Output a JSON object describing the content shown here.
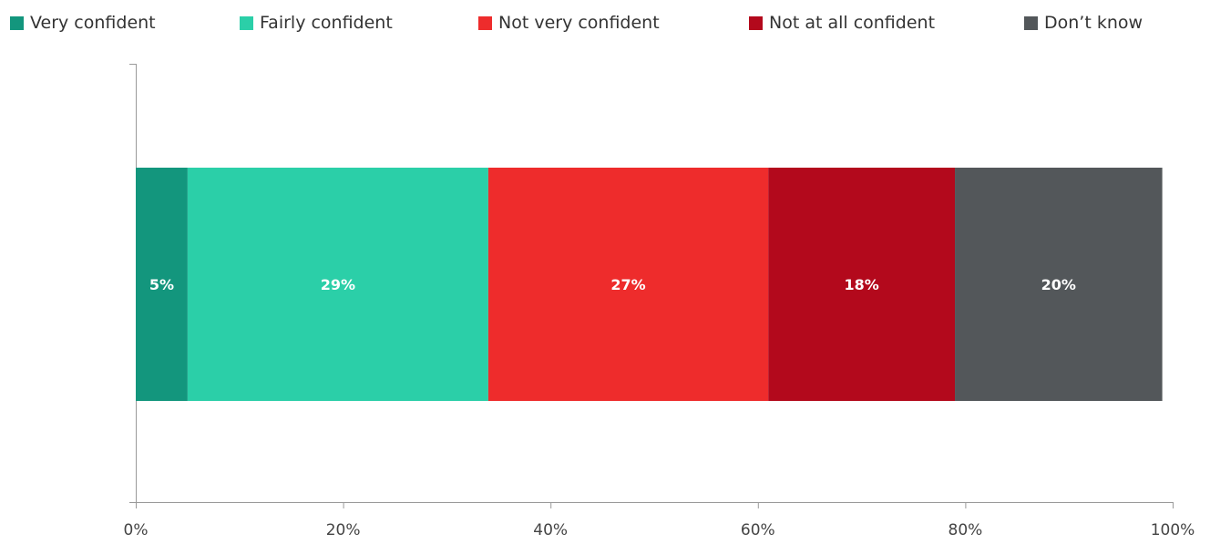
{
  "chart_data": {
    "type": "bar",
    "orientation": "horizontal",
    "stacked": true,
    "categories": [
      ""
    ],
    "series": [
      {
        "name": "Very confident",
        "values": [
          5
        ],
        "label": "5%",
        "color": "#13967d"
      },
      {
        "name": "Fairly confident",
        "values": [
          29
        ],
        "label": "29%",
        "color": "#2bcfa8"
      },
      {
        "name": "Not very confident",
        "values": [
          27
        ],
        "label": "27%",
        "color": "#ee2c2c"
      },
      {
        "name": "Not at all confident",
        "values": [
          18
        ],
        "label": "18%",
        "color": "#b3091c"
      },
      {
        "name": "Don’t know",
        "values": [
          20
        ],
        "label": "20%",
        "color": "#53575a"
      }
    ],
    "xlim": [
      0,
      100
    ],
    "xticks": [
      0,
      20,
      40,
      60,
      80,
      100
    ],
    "xtick_labels": [
      "0%",
      "20%",
      "40%",
      "60%",
      "80%",
      "100%"
    ],
    "legend_position": "top",
    "grid": false,
    "title": "",
    "xlabel": "",
    "ylabel": ""
  }
}
